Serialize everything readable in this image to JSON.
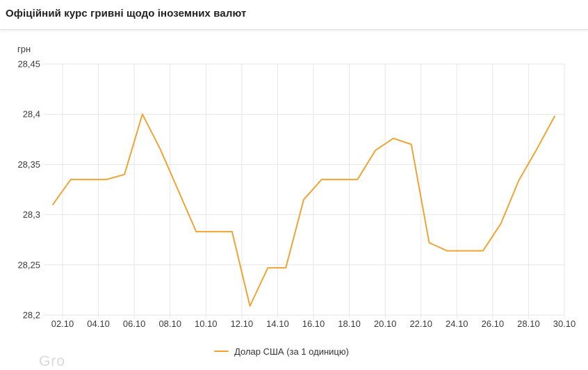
{
  "header": {
    "title": "Офіційний курс гривні щодо іноземних валют"
  },
  "y_axis": {
    "unit_label": "грн"
  },
  "legend": {
    "label": "Долар США (за 1 одиницю)"
  },
  "watermark": "Gro",
  "chart_data": {
    "type": "line",
    "title": "Офіційний курс гривні щодо іноземних валют",
    "xlabel": "",
    "ylabel": "грн",
    "ylim": [
      28.2,
      28.45
    ],
    "grid": true,
    "legend_position": "bottom",
    "y_tick_values": [
      28.45,
      28.4,
      28.35,
      28.3,
      28.25,
      28.2
    ],
    "y_tick_labels": [
      "28,45",
      "28,4",
      "28,35",
      "28,3",
      "28,25",
      "28,2"
    ],
    "x_tick_labels": [
      "02.10",
      "04.10",
      "06.10",
      "08.10",
      "10.10",
      "12.10",
      "14.10",
      "16.10",
      "18.10",
      "20.10",
      "22.10",
      "24.10",
      "26.10",
      "28.10",
      "30.10"
    ],
    "categories": [
      "02.10",
      "03.10",
      "04.10",
      "05.10",
      "06.10",
      "07.10",
      "08.10",
      "09.10",
      "10.10",
      "11.10",
      "12.10",
      "13.10",
      "14.10",
      "15.10",
      "16.10",
      "17.10",
      "18.10",
      "19.10",
      "20.10",
      "21.10",
      "22.10",
      "23.10",
      "24.10",
      "25.10",
      "26.10",
      "27.10",
      "28.10",
      "29.10",
      "30.10"
    ],
    "series": [
      {
        "name": "Долар США (за 1 одиницю)",
        "color": "#f0a332",
        "values": [
          28.31,
          28.335,
          28.335,
          28.335,
          28.34,
          28.4,
          28.365,
          28.324,
          28.283,
          28.283,
          28.283,
          28.209,
          28.247,
          28.247,
          28.315,
          28.335,
          28.335,
          28.335,
          28.364,
          28.376,
          28.37,
          28.272,
          28.264,
          28.264,
          28.264,
          28.291,
          28.334,
          28.365,
          28.398
        ]
      }
    ],
    "colors": {
      "gridline": "#e6e6e6",
      "tick_text": "#3a3a3a",
      "series_line": "#f0a332"
    }
  }
}
